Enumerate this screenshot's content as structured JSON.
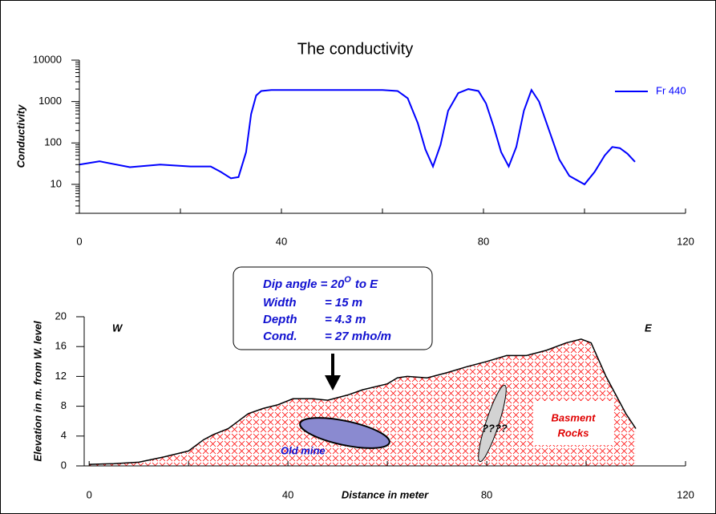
{
  "chart_data": [
    {
      "type": "line",
      "title": "The conductivity",
      "ylabel": "Conductivity",
      "x": [
        0,
        4,
        10,
        16,
        22,
        26,
        28,
        30,
        31.5,
        33,
        34,
        35,
        36,
        38,
        40,
        50,
        60,
        63,
        65,
        67,
        68.5,
        70,
        71.5,
        73,
        75,
        77,
        79,
        80.5,
        82,
        83.5,
        85,
        86.5,
        88,
        89.5,
        91,
        93,
        95,
        97,
        100,
        102,
        104,
        105.5,
        107,
        108.5,
        110
      ],
      "series": [
        {
          "name": "Fr 440",
          "color": "#0000ff",
          "values": [
            30,
            36,
            26,
            30,
            27,
            27,
            20,
            14,
            15,
            60,
            500,
            1400,
            1800,
            1900,
            1900,
            1900,
            1900,
            1800,
            1200,
            300,
            70,
            27,
            90,
            600,
            1600,
            2000,
            1800,
            900,
            250,
            60,
            27,
            80,
            600,
            1900,
            1000,
            200,
            40,
            16,
            10,
            20,
            50,
            80,
            75,
            55,
            35
          ]
        }
      ],
      "xlim": [
        0,
        120
      ],
      "xticks": [
        0,
        40,
        80,
        120
      ],
      "xminorticks": [
        20,
        60,
        100
      ],
      "ylim": [
        2,
        10000
      ],
      "yticks": [
        10,
        100,
        1000,
        10000
      ],
      "log_y": true,
      "y_minor_ticks": true,
      "legend": "upper right"
    },
    {
      "type": "area",
      "xlabel": "Distance in meter",
      "ylabel": "Elevation in m. from W. level",
      "x": [
        0,
        5,
        10,
        15,
        20,
        23,
        25,
        28,
        30,
        32,
        35,
        38,
        41,
        45,
        48,
        52,
        55,
        60,
        62,
        64,
        68,
        72,
        76,
        80,
        84,
        88,
        92,
        96,
        99,
        101,
        104,
        108,
        110
      ],
      "values": [
        0.2,
        0.3,
        0.5,
        1.2,
        2,
        3.5,
        4.2,
        5,
        6,
        7,
        7.7,
        8.2,
        9,
        9,
        8.8,
        9.5,
        10.2,
        11,
        11.8,
        12,
        11.8,
        12.5,
        13.3,
        14,
        14.8,
        14.8,
        15.5,
        16.5,
        17,
        16.5,
        12,
        7,
        5
      ],
      "color": "#ff0000",
      "xlim": [
        -1,
        120
      ],
      "xticks": [
        0,
        40,
        80,
        120
      ],
      "xminorticks": [
        20,
        60,
        100
      ],
      "ylim": [
        0,
        20
      ],
      "yticks": [
        0,
        4,
        8,
        12,
        16,
        20
      ],
      "annotations": {
        "west": "W",
        "east": "E",
        "dip": "Dip angle = 20",
        "dip_sup": "O",
        "dip_tail": "to E",
        "props": [
          [
            "Width",
            "= 15 m"
          ],
          [
            "Depth",
            "= 4.3 m"
          ],
          [
            "Cond.",
            "= 27 mho/m"
          ]
        ],
        "mine": "Old mine",
        "unknown": "????",
        "rock1": "Basment",
        "rock2": "Rocks"
      }
    }
  ]
}
